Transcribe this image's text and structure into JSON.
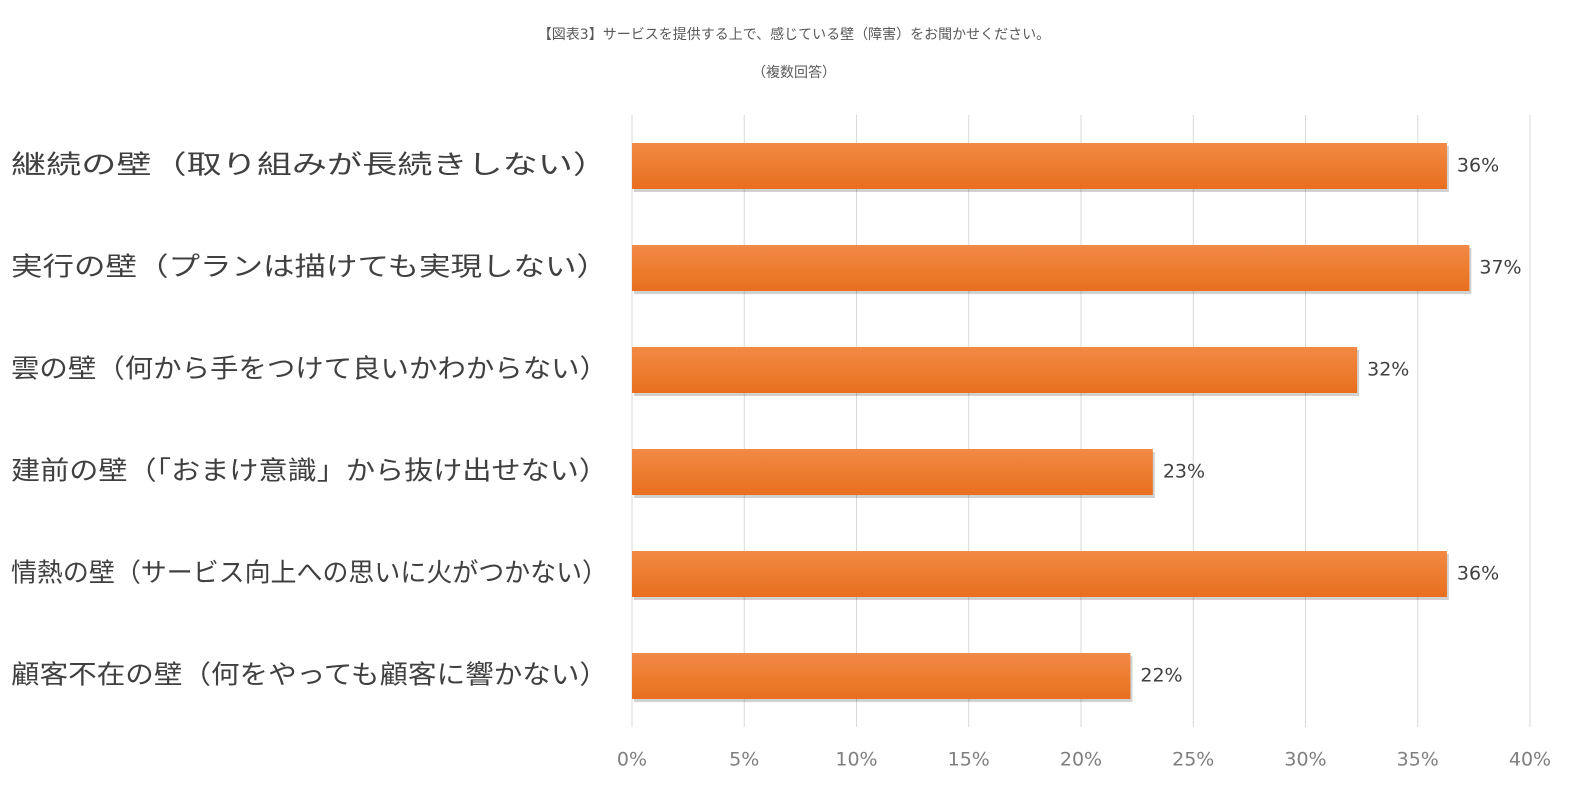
{
  "chart_data": {
    "type": "bar",
    "orientation": "horizontal",
    "title": "【図表3】サービスを提供する上で、感じている壁（障害）をお聞かせください。",
    "subtitle": "（複数回答）",
    "categories": [
      "継続の壁（取り組みが長続きしない）",
      "実行の壁（プランは描けても実現しない）",
      "雲の壁（何から手をつけて良いかわからない）",
      "建前の壁（「おまけ意識」から抜け出せない）",
      "情熱の壁（サービス向上への思いに火がつかない）",
      "顧客不在の壁（何をやっても顧客に響かない）"
    ],
    "values": [
      36.3,
      37.3,
      32.3,
      23.2,
      36.3,
      22.2
    ],
    "data_labels": [
      "36%",
      "37%",
      "32%",
      "23%",
      "36%",
      "22%"
    ],
    "xlim": [
      0,
      40
    ],
    "x_ticks": [
      0,
      5,
      10,
      15,
      20,
      25,
      30,
      35,
      40
    ],
    "x_tick_labels": [
      "0%",
      "5%",
      "10%",
      "15%",
      "20%",
      "25%",
      "30%",
      "35%",
      "40%"
    ],
    "grid": "vertical",
    "legend": "none",
    "bar_color": "#ED7D31",
    "bar_color_light": "#F28A45",
    "bar_color_dark": "#E86F1E",
    "text_color": "#404040",
    "tick_text_color": "#7F7F7F",
    "grid_color": "#D9D9D9"
  }
}
